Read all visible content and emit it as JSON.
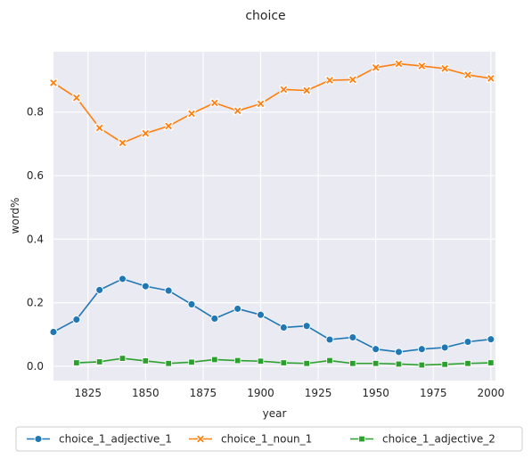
{
  "chart_data": {
    "type": "line",
    "title": "choice",
    "xlabel": "year",
    "ylabel": "word%",
    "xlim": [
      1810,
      2002
    ],
    "ylim": [
      -0.045,
      0.99
    ],
    "xticks": [
      1825,
      1850,
      1875,
      1900,
      1925,
      1950,
      1975,
      2000
    ],
    "yticks": [
      0.0,
      0.2,
      0.4,
      0.6,
      0.8
    ],
    "grid": true,
    "legend_position": "bottom",
    "series": [
      {
        "name": "choice_1_adjective_1",
        "color": "#1f77b4",
        "marker": "circle",
        "x": [
          1810,
          1820,
          1830,
          1840,
          1850,
          1860,
          1870,
          1880,
          1890,
          1900,
          1910,
          1920,
          1930,
          1940,
          1950,
          1960,
          1970,
          1980,
          1990,
          2000
        ],
        "y": [
          0.108,
          0.147,
          0.24,
          0.275,
          0.252,
          0.238,
          0.195,
          0.15,
          0.181,
          0.162,
          0.122,
          0.127,
          0.084,
          0.091,
          0.054,
          0.045,
          0.054,
          0.059,
          0.077,
          0.085
        ]
      },
      {
        "name": "choice_1_noun_1",
        "color": "#ff7f0e",
        "marker": "x",
        "x": [
          1810,
          1820,
          1830,
          1840,
          1850,
          1860,
          1870,
          1880,
          1890,
          1900,
          1910,
          1920,
          1930,
          1940,
          1950,
          1960,
          1970,
          1980,
          1990,
          2000
        ],
        "y": [
          0.892,
          0.845,
          0.75,
          0.703,
          0.733,
          0.756,
          0.795,
          0.829,
          0.804,
          0.826,
          0.871,
          0.868,
          0.9,
          0.902,
          0.94,
          0.952,
          0.945,
          0.937,
          0.917,
          0.906
        ]
      },
      {
        "name": "choice_1_adjective_2",
        "color": "#2ca02c",
        "marker": "square",
        "x": [
          1820,
          1830,
          1840,
          1850,
          1860,
          1870,
          1880,
          1890,
          1900,
          1910,
          1920,
          1930,
          1940,
          1950,
          1960,
          1970,
          1980,
          1990,
          2000
        ],
        "y": [
          0.011,
          0.014,
          0.025,
          0.017,
          0.009,
          0.013,
          0.021,
          0.018,
          0.016,
          0.011,
          0.009,
          0.018,
          0.009,
          0.009,
          0.007,
          0.004,
          0.006,
          0.009,
          0.011
        ]
      }
    ]
  }
}
